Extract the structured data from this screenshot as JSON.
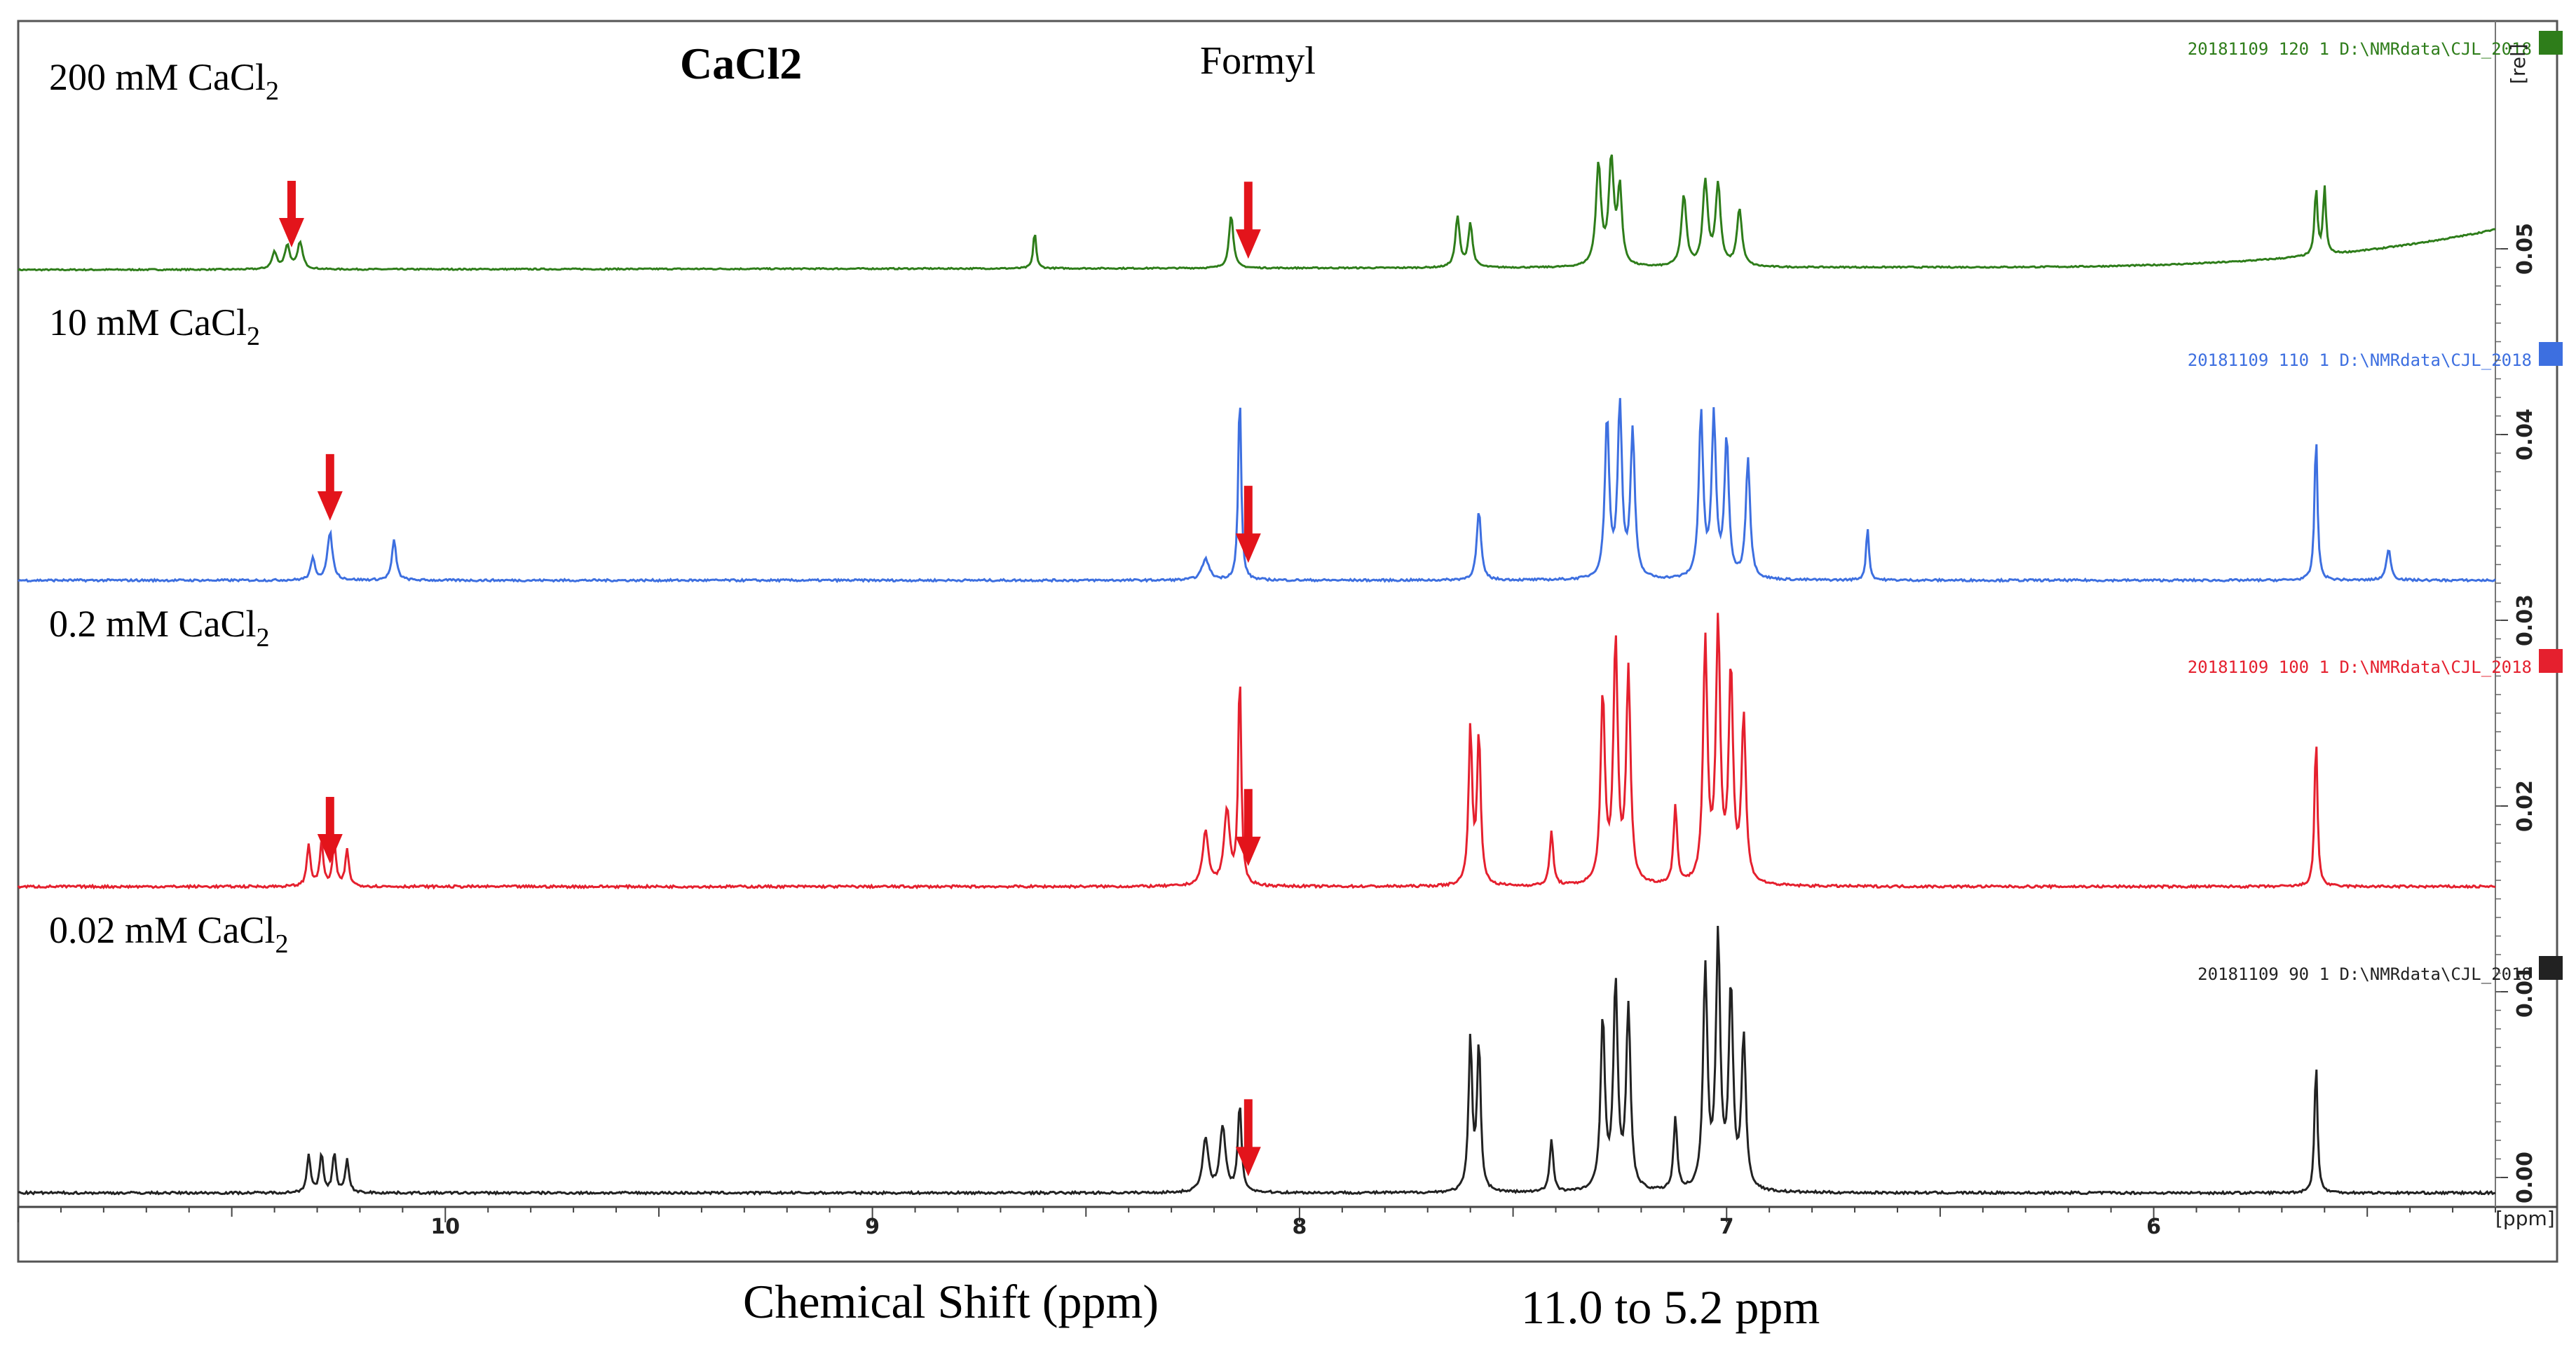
{
  "chart_data": {
    "type": "line",
    "title": "CaCl2",
    "xlabel": "Chemical Shift (ppm)",
    "x_range_note": "11.0 to 5.2 ppm",
    "x_unit_label": "[ppm]",
    "y_unit_label": "[rel]",
    "xlim": [
      11.0,
      5.2
    ],
    "x_ticks": [
      10,
      9,
      8,
      7,
      6
    ],
    "y_ticks": [
      "0.00",
      "0.01",
      "0.02",
      "0.03",
      "0.04",
      "0.05"
    ],
    "annotation": "Formyl",
    "formyl_ppm": 8.12,
    "series": [
      {
        "name": "200 mM CaCl2",
        "label_main": "200 mM CaCl",
        "label_sub": "2",
        "legend": "20181109  120  1  D:\\NMRdata\\CJL_2018",
        "color": "#2e7d1a",
        "baseline_tilt": 0.02,
        "rise_end": 0.22,
        "aldehyde_arrow_ppm": 10.36,
        "peaks": [
          [
            10.4,
            0.1,
            0.007
          ],
          [
            10.37,
            0.14,
            0.007
          ],
          [
            10.34,
            0.16,
            0.007
          ],
          [
            8.16,
            0.32,
            0.006
          ],
          [
            8.62,
            0.22,
            0.004
          ],
          [
            7.63,
            0.3,
            0.006
          ],
          [
            7.6,
            0.26,
            0.006
          ],
          [
            7.3,
            0.6,
            0.007
          ],
          [
            7.27,
            0.62,
            0.007
          ],
          [
            7.25,
            0.45,
            0.006
          ],
          [
            7.1,
            0.42,
            0.007
          ],
          [
            7.05,
            0.5,
            0.007
          ],
          [
            7.02,
            0.48,
            0.007
          ],
          [
            6.97,
            0.34,
            0.007
          ],
          [
            5.62,
            0.4,
            0.004
          ],
          [
            5.6,
            0.4,
            0.004
          ]
        ]
      },
      {
        "name": "10 mM CaCl2",
        "label_main": "10 mM CaCl",
        "label_sub": "2",
        "legend": "20181109  110  1  D:\\NMRdata\\CJL_2018",
        "color": "#3d6fe0",
        "baseline_tilt": 0.0,
        "rise_end": 0.0,
        "aldehyde_arrow_ppm": 10.27,
        "peaks": [
          [
            10.31,
            0.08,
            0.006
          ],
          [
            10.27,
            0.18,
            0.007
          ],
          [
            10.12,
            0.15,
            0.006
          ],
          [
            8.14,
            0.72,
            0.004
          ],
          [
            8.22,
            0.08,
            0.01
          ],
          [
            7.58,
            0.26,
            0.006
          ],
          [
            7.28,
            0.6,
            0.006
          ],
          [
            7.25,
            0.65,
            0.006
          ],
          [
            7.22,
            0.55,
            0.006
          ],
          [
            7.06,
            0.62,
            0.006
          ],
          [
            7.03,
            0.6,
            0.006
          ],
          [
            7.0,
            0.52,
            0.006
          ],
          [
            6.95,
            0.45,
            0.006
          ],
          [
            6.67,
            0.2,
            0.004
          ],
          [
            5.62,
            0.55,
            0.004
          ],
          [
            5.45,
            0.12,
            0.006
          ]
        ]
      },
      {
        "name": "0.2 mM CaCl2",
        "label_main": "0.2 mM CaCl",
        "label_sub": "2",
        "legend": "20181109  100  1  D:\\NMRdata\\CJL_2018",
        "color": "#e5202e",
        "baseline_tilt": 0.0,
        "rise_end": 0.0,
        "aldehyde_arrow_ppm": 10.27,
        "peaks": [
          [
            10.32,
            0.14,
            0.005
          ],
          [
            10.29,
            0.14,
            0.005
          ],
          [
            10.26,
            0.14,
            0.005
          ],
          [
            10.23,
            0.12,
            0.005
          ],
          [
            8.14,
            0.72,
            0.004
          ],
          [
            8.17,
            0.25,
            0.008
          ],
          [
            8.22,
            0.18,
            0.008
          ],
          [
            7.6,
            0.52,
            0.005
          ],
          [
            7.58,
            0.5,
            0.005
          ],
          [
            7.41,
            0.18,
            0.005
          ],
          [
            7.29,
            0.62,
            0.006
          ],
          [
            7.26,
            0.8,
            0.006
          ],
          [
            7.23,
            0.7,
            0.006
          ],
          [
            7.12,
            0.26,
            0.005
          ],
          [
            7.05,
            0.8,
            0.006
          ],
          [
            7.02,
            0.85,
            0.006
          ],
          [
            6.99,
            0.7,
            0.006
          ],
          [
            6.96,
            0.55,
            0.006
          ],
          [
            5.62,
            0.5,
            0.004
          ]
        ]
      },
      {
        "name": "0.02 mM CaCl2",
        "label_main": "0.02 mM CaCl",
        "label_sub": "2",
        "legend": "20181109  90  1  D:\\NMRdata\\CJL_2018",
        "color": "#222222",
        "baseline_tilt": 0.0,
        "rise_end": 0.0,
        "aldehyde_arrow_ppm": null,
        "peaks": [
          [
            10.32,
            0.13,
            0.005
          ],
          [
            10.29,
            0.13,
            0.005
          ],
          [
            10.26,
            0.13,
            0.005
          ],
          [
            10.23,
            0.11,
            0.005
          ],
          [
            8.14,
            0.3,
            0.005
          ],
          [
            8.18,
            0.22,
            0.008
          ],
          [
            8.22,
            0.18,
            0.008
          ],
          [
            7.6,
            0.52,
            0.005
          ],
          [
            7.58,
            0.5,
            0.005
          ],
          [
            7.41,
            0.18,
            0.005
          ],
          [
            7.29,
            0.58,
            0.006
          ],
          [
            7.26,
            0.7,
            0.006
          ],
          [
            7.23,
            0.62,
            0.006
          ],
          [
            7.12,
            0.25,
            0.005
          ],
          [
            7.05,
            0.75,
            0.006
          ],
          [
            7.02,
            0.85,
            0.006
          ],
          [
            6.99,
            0.68,
            0.006
          ],
          [
            6.96,
            0.52,
            0.006
          ],
          [
            5.62,
            0.45,
            0.004
          ]
        ]
      }
    ]
  }
}
